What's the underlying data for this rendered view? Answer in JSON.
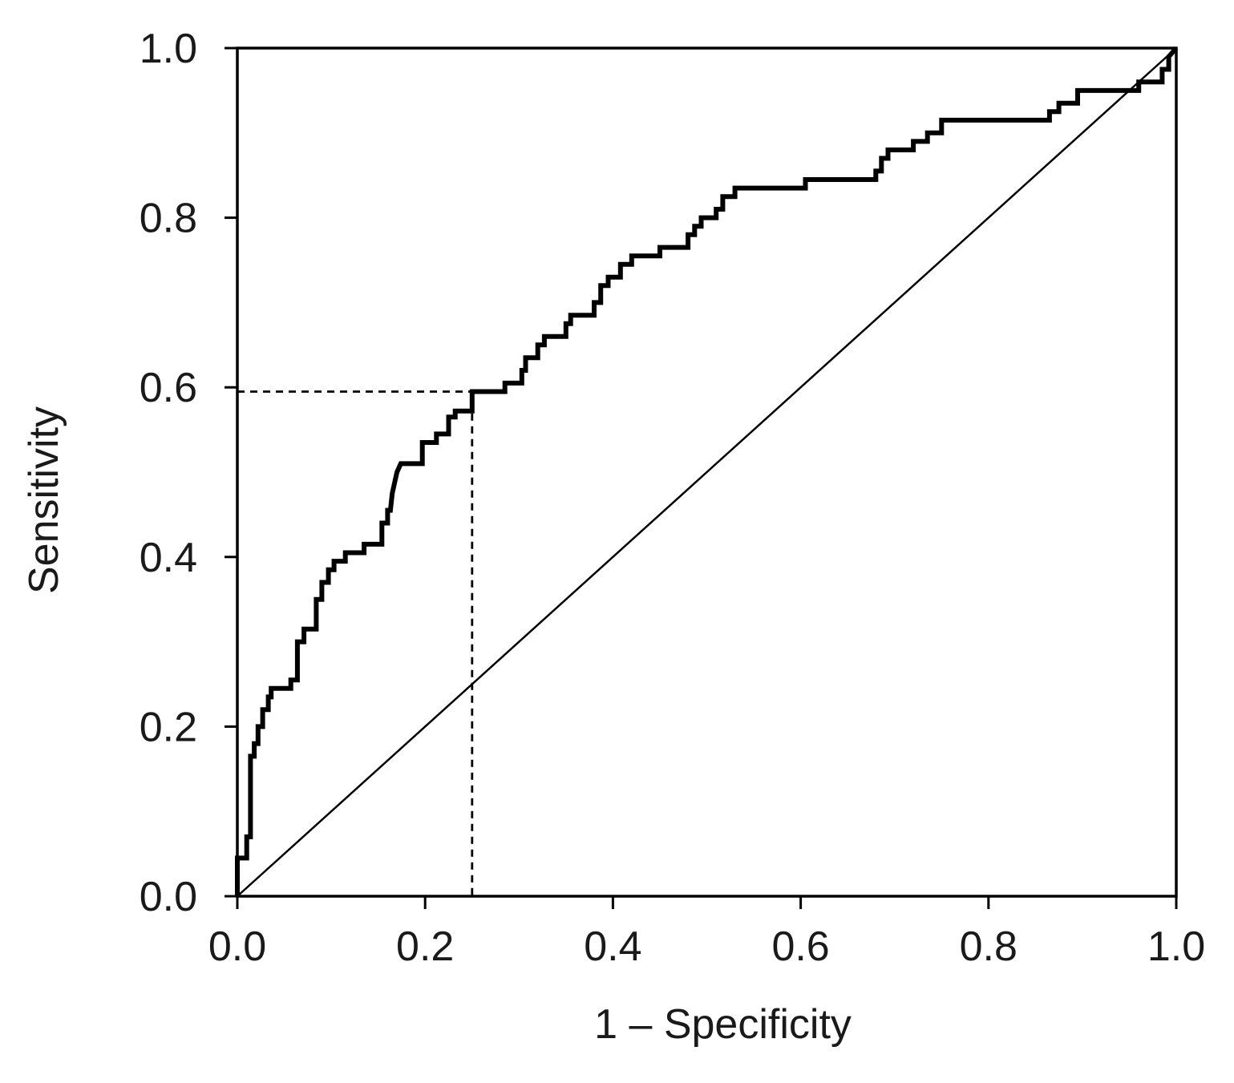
{
  "chart_data": {
    "type": "line",
    "title": "",
    "xlabel": "1 – Specificity",
    "ylabel": "Sensitivity",
    "xlim": [
      0,
      1
    ],
    "ylim": [
      0,
      1
    ],
    "x_ticks": [
      "0.0",
      "0.2",
      "0.4",
      "0.6",
      "0.8",
      "1.0"
    ],
    "y_ticks": [
      "0.0",
      "0.2",
      "0.4",
      "0.6",
      "0.8",
      "1.0"
    ],
    "grid": false,
    "legend": "none",
    "colors": {
      "line": "#000000",
      "axis": "#000000",
      "background": "#ffffff"
    },
    "series": [
      {
        "role": "roc-curve",
        "style": "solid-thick",
        "points": [
          [
            0.0,
            0.0
          ],
          [
            0.0,
            0.045
          ],
          [
            0.01,
            0.045
          ],
          [
            0.01,
            0.07
          ],
          [
            0.014,
            0.07
          ],
          [
            0.014,
            0.165
          ],
          [
            0.018,
            0.165
          ],
          [
            0.018,
            0.18
          ],
          [
            0.022,
            0.18
          ],
          [
            0.022,
            0.2
          ],
          [
            0.027,
            0.2
          ],
          [
            0.027,
            0.22
          ],
          [
            0.033,
            0.22
          ],
          [
            0.033,
            0.235
          ],
          [
            0.036,
            0.235
          ],
          [
            0.036,
            0.245
          ],
          [
            0.057,
            0.245
          ],
          [
            0.057,
            0.255
          ],
          [
            0.064,
            0.255
          ],
          [
            0.064,
            0.3
          ],
          [
            0.071,
            0.3
          ],
          [
            0.071,
            0.315
          ],
          [
            0.084,
            0.315
          ],
          [
            0.084,
            0.35
          ],
          [
            0.09,
            0.35
          ],
          [
            0.09,
            0.37
          ],
          [
            0.097,
            0.37
          ],
          [
            0.097,
            0.385
          ],
          [
            0.103,
            0.385
          ],
          [
            0.103,
            0.395
          ],
          [
            0.115,
            0.395
          ],
          [
            0.115,
            0.405
          ],
          [
            0.135,
            0.405
          ],
          [
            0.135,
            0.415
          ],
          [
            0.154,
            0.415
          ],
          [
            0.154,
            0.44
          ],
          [
            0.16,
            0.44
          ],
          [
            0.16,
            0.455
          ],
          [
            0.163,
            0.455
          ],
          [
            0.165,
            0.475
          ],
          [
            0.168,
            0.49
          ],
          [
            0.17,
            0.5
          ],
          [
            0.174,
            0.51
          ],
          [
            0.197,
            0.51
          ],
          [
            0.197,
            0.535
          ],
          [
            0.212,
            0.535
          ],
          [
            0.212,
            0.545
          ],
          [
            0.225,
            0.545
          ],
          [
            0.225,
            0.565
          ],
          [
            0.232,
            0.565
          ],
          [
            0.232,
            0.572
          ],
          [
            0.25,
            0.572
          ],
          [
            0.25,
            0.595
          ],
          [
            0.285,
            0.595
          ],
          [
            0.285,
            0.605
          ],
          [
            0.303,
            0.605
          ],
          [
            0.303,
            0.62
          ],
          [
            0.307,
            0.62
          ],
          [
            0.307,
            0.635
          ],
          [
            0.32,
            0.635
          ],
          [
            0.32,
            0.65
          ],
          [
            0.327,
            0.65
          ],
          [
            0.327,
            0.66
          ],
          [
            0.35,
            0.66
          ],
          [
            0.35,
            0.675
          ],
          [
            0.355,
            0.675
          ],
          [
            0.355,
            0.685
          ],
          [
            0.38,
            0.685
          ],
          [
            0.38,
            0.7
          ],
          [
            0.387,
            0.7
          ],
          [
            0.387,
            0.72
          ],
          [
            0.395,
            0.72
          ],
          [
            0.395,
            0.73
          ],
          [
            0.408,
            0.73
          ],
          [
            0.408,
            0.745
          ],
          [
            0.42,
            0.745
          ],
          [
            0.42,
            0.755
          ],
          [
            0.45,
            0.755
          ],
          [
            0.45,
            0.765
          ],
          [
            0.48,
            0.765
          ],
          [
            0.48,
            0.78
          ],
          [
            0.487,
            0.78
          ],
          [
            0.487,
            0.79
          ],
          [
            0.494,
            0.79
          ],
          [
            0.494,
            0.8
          ],
          [
            0.51,
            0.8
          ],
          [
            0.51,
            0.81
          ],
          [
            0.517,
            0.81
          ],
          [
            0.517,
            0.825
          ],
          [
            0.53,
            0.825
          ],
          [
            0.53,
            0.835
          ],
          [
            0.605,
            0.835
          ],
          [
            0.605,
            0.845
          ],
          [
            0.68,
            0.845
          ],
          [
            0.68,
            0.855
          ],
          [
            0.686,
            0.855
          ],
          [
            0.686,
            0.87
          ],
          [
            0.693,
            0.87
          ],
          [
            0.693,
            0.88
          ],
          [
            0.72,
            0.88
          ],
          [
            0.72,
            0.89
          ],
          [
            0.735,
            0.89
          ],
          [
            0.735,
            0.9
          ],
          [
            0.75,
            0.9
          ],
          [
            0.75,
            0.915
          ],
          [
            0.865,
            0.915
          ],
          [
            0.865,
            0.925
          ],
          [
            0.875,
            0.925
          ],
          [
            0.875,
            0.935
          ],
          [
            0.895,
            0.935
          ],
          [
            0.895,
            0.95
          ],
          [
            0.96,
            0.95
          ],
          [
            0.96,
            0.96
          ],
          [
            0.985,
            0.96
          ],
          [
            0.985,
            0.975
          ],
          [
            0.992,
            0.975
          ],
          [
            0.992,
            0.99
          ],
          [
            1.0,
            1.0
          ]
        ]
      },
      {
        "role": "reference-diagonal",
        "style": "solid-thin",
        "points": [
          [
            0,
            0
          ],
          [
            1,
            1
          ]
        ]
      },
      {
        "role": "cutoff-guide",
        "style": "dashed",
        "points": [
          [
            0,
            0.595
          ],
          [
            0.25,
            0.595
          ],
          [
            0.25,
            0
          ]
        ]
      }
    ]
  }
}
